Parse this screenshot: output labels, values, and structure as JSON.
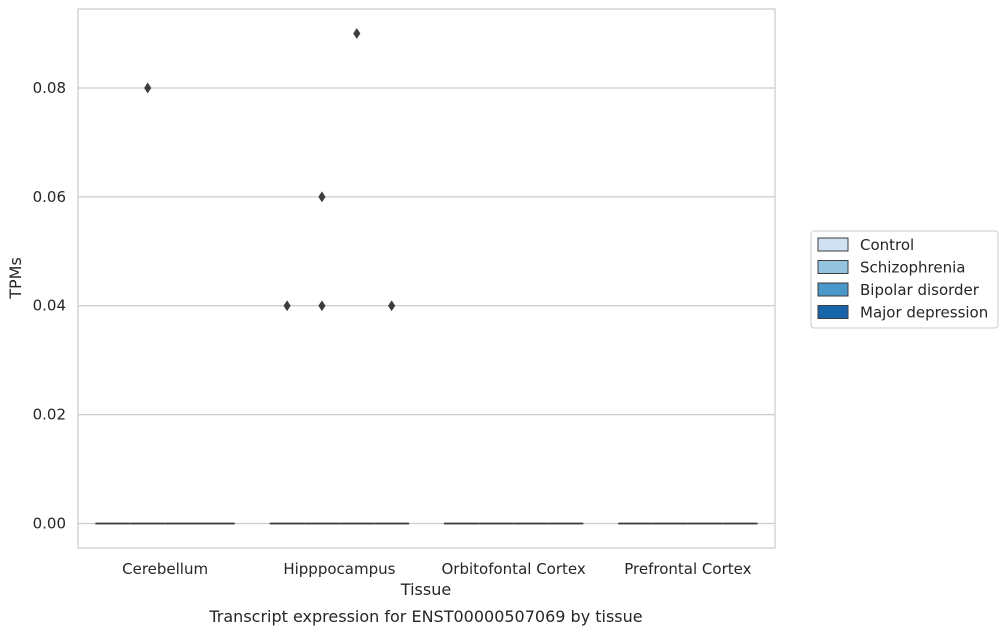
{
  "chart_data": {
    "type": "box",
    "xlabel": "Tissue",
    "ylabel": "TPMs",
    "caption": "Transcript expression for ENST00000507069 by tissue",
    "categories": [
      "Cerebellum",
      "Hipppocampus",
      "Orbitofontal Cortex",
      "Prefrontal Cortex"
    ],
    "ylim": [
      -0.0045,
      0.0945
    ],
    "yticks": [
      0.0,
      0.02,
      0.04,
      0.06,
      0.08
    ],
    "ytick_labels": [
      "0.00",
      "0.02",
      "0.04",
      "0.06",
      "0.08"
    ],
    "grid": "horizontal",
    "legend_position": "right",
    "series": [
      {
        "name": "Control",
        "color": "#d0e1f2",
        "boxes": [
          {
            "category": "Cerebellum",
            "median": 0,
            "q1": 0,
            "q3": 0,
            "whisker_low": 0,
            "whisker_high": 0,
            "outliers": []
          },
          {
            "category": "Hipppocampus",
            "median": 0,
            "q1": 0,
            "q3": 0,
            "whisker_low": 0,
            "whisker_high": 0,
            "outliers": [
              0.04
            ]
          },
          {
            "category": "Orbitofontal Cortex",
            "median": 0,
            "q1": 0,
            "q3": 0,
            "whisker_low": 0,
            "whisker_high": 0,
            "outliers": []
          },
          {
            "category": "Prefrontal Cortex",
            "median": 0,
            "q1": 0,
            "q3": 0,
            "whisker_low": 0,
            "whisker_high": 0,
            "outliers": []
          }
        ]
      },
      {
        "name": "Schizophrenia",
        "color": "#94c4df",
        "boxes": [
          {
            "category": "Cerebellum",
            "median": 0,
            "q1": 0,
            "q3": 0,
            "whisker_low": 0,
            "whisker_high": 0,
            "outliers": [
              0.08
            ]
          },
          {
            "category": "Hipppocampus",
            "median": 0,
            "q1": 0,
            "q3": 0,
            "whisker_low": 0,
            "whisker_high": 0,
            "outliers": [
              0.06,
              0.04
            ]
          },
          {
            "category": "Orbitofontal Cortex",
            "median": 0,
            "q1": 0,
            "q3": 0,
            "whisker_low": 0,
            "whisker_high": 0,
            "outliers": []
          },
          {
            "category": "Prefrontal Cortex",
            "median": 0,
            "q1": 0,
            "q3": 0,
            "whisker_low": 0,
            "whisker_high": 0,
            "outliers": []
          }
        ]
      },
      {
        "name": "Bipolar disorder",
        "color": "#4a98c9",
        "boxes": [
          {
            "category": "Cerebellum",
            "median": 0,
            "q1": 0,
            "q3": 0,
            "whisker_low": 0,
            "whisker_high": 0,
            "outliers": []
          },
          {
            "category": "Hipppocampus",
            "median": 0,
            "q1": 0,
            "q3": 0,
            "whisker_low": 0,
            "whisker_high": 0,
            "outliers": [
              0.09
            ]
          },
          {
            "category": "Orbitofontal Cortex",
            "median": 0,
            "q1": 0,
            "q3": 0,
            "whisker_low": 0,
            "whisker_high": 0,
            "outliers": []
          },
          {
            "category": "Prefrontal Cortex",
            "median": 0,
            "q1": 0,
            "q3": 0,
            "whisker_low": 0,
            "whisker_high": 0,
            "outliers": []
          }
        ]
      },
      {
        "name": "Major depression",
        "color": "#1764ab",
        "boxes": [
          {
            "category": "Cerebellum",
            "median": 0,
            "q1": 0,
            "q3": 0,
            "whisker_low": 0,
            "whisker_high": 0,
            "outliers": []
          },
          {
            "category": "Hipppocampus",
            "median": 0,
            "q1": 0,
            "q3": 0,
            "whisker_low": 0,
            "whisker_high": 0,
            "outliers": [
              0.04
            ]
          },
          {
            "category": "Orbitofontal Cortex",
            "median": 0,
            "q1": 0,
            "q3": 0,
            "whisker_low": 0,
            "whisker_high": 0,
            "outliers": []
          },
          {
            "category": "Prefrontal Cortex",
            "median": 0,
            "q1": 0,
            "q3": 0,
            "whisker_low": 0,
            "whisker_high": 0,
            "outliers": []
          }
        ]
      }
    ]
  }
}
